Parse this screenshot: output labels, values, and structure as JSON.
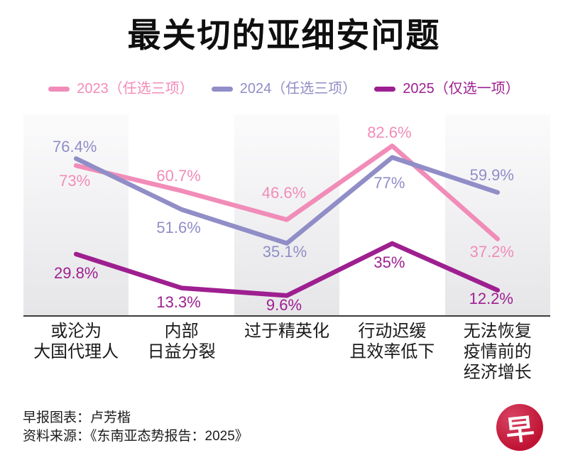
{
  "chart_data": {
    "type": "line",
    "title": "最关切的亚细安问题",
    "categories": [
      [
        "或沦为",
        "大国代理人"
      ],
      [
        "内部",
        "日益分裂"
      ],
      [
        "过于精英化"
      ],
      [
        "行动迟缓",
        "且效率低下"
      ],
      [
        "无法恢复",
        "疫情前的",
        "经济增长"
      ]
    ],
    "series": [
      {
        "name": "2023（任选三项）",
        "color": "#f18cb8",
        "values": [
          73,
          60.7,
          46.6,
          82.6,
          37.2
        ],
        "label_offsets": [
          [
            -2,
            22
          ],
          [
            -4,
            -21
          ],
          [
            -4,
            -37
          ],
          [
            -4,
            -18
          ],
          [
            -8,
            18
          ]
        ]
      },
      {
        "name": "2024（任选三项）",
        "color": "#908dc7",
        "values": [
          76.4,
          51.6,
          35.1,
          77,
          59.9
        ],
        "label_offsets": [
          [
            -2,
            -16
          ],
          [
            -4,
            26
          ],
          [
            -3,
            12
          ],
          [
            -4,
            36
          ],
          [
            -8,
            -24
          ]
        ]
      },
      {
        "name": "2025（仅选一项）",
        "color": "#9e1f90",
        "values": [
          29.8,
          13.3,
          9.6,
          35,
          12.2
        ],
        "label_offsets": [
          [
            0,
            27
          ],
          [
            -4,
            20
          ],
          [
            -4,
            14
          ],
          [
            -4,
            27
          ],
          [
            -9,
            12
          ]
        ]
      }
    ],
    "unit": "%",
    "ylim": [
      0,
      98
    ],
    "xlabel": "",
    "ylabel": "",
    "legend_position": "top",
    "grid": "alternating-vertical-bands",
    "band_colors": [
      "#fbfbfc",
      "#e6e6e9"
    ],
    "axis_color": "#3d3d3d",
    "line_width": 6.5
  },
  "footer": {
    "credit": "早报图表：卢芳楷",
    "source": "资料来源：《东南亚态势报告：2025》"
  },
  "logo": {
    "char": "早",
    "bg": "#c01334",
    "fg": "#ffffff"
  }
}
